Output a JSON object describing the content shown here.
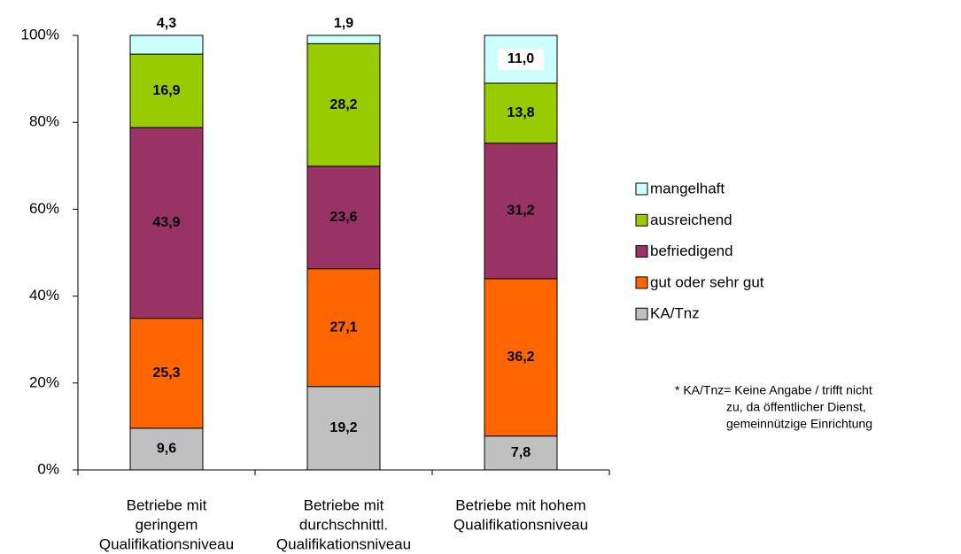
{
  "chart_data": {
    "type": "stacked_bar",
    "categories": [
      [
        "Betriebe mit",
        "geringem",
        "Qualifikationsniveau"
      ],
      [
        "Betriebe mit",
        "durchschnittl.",
        "Qualifikationsniveau"
      ],
      [
        "Betriebe mit hohem",
        "Qualifikationsniveau"
      ]
    ],
    "series": [
      {
        "name": "KA/Tnz",
        "color": "#C0C0C0",
        "label_color": "#000000",
        "values": [
          9.6,
          19.2,
          7.8
        ],
        "value_labels": [
          "9,6",
          "19,2",
          "7,8"
        ]
      },
      {
        "name": "gut oder sehr gut",
        "color": "#FF6600",
        "label_color": "#000000",
        "values": [
          25.3,
          27.1,
          36.2
        ],
        "value_labels": [
          "25,3",
          "27,1",
          "36,2"
        ]
      },
      {
        "name": "befriedigend",
        "color": "#993366",
        "label_color": "#FFFFFF",
        "values": [
          43.9,
          23.6,
          31.2
        ],
        "value_labels": [
          "43,9",
          "23,6",
          "31,2"
        ]
      },
      {
        "name": "ausreichend",
        "color": "#99CC00",
        "label_color": "#000000",
        "values": [
          16.9,
          28.2,
          13.8
        ],
        "value_labels": [
          "16,9",
          "28,2",
          "13,8"
        ]
      },
      {
        "name": "mangelhaft",
        "color": "#CCFFFF",
        "label_color": "#000000",
        "values": [
          4.3,
          1.9,
          11.0
        ],
        "value_labels": [
          "4,3",
          "1,9",
          "11,0"
        ]
      }
    ],
    "ylim": [
      0,
      100
    ],
    "yticks": [
      {
        "value": 0,
        "label": "0%"
      },
      {
        "value": 20,
        "label": "20%"
      },
      {
        "value": 40,
        "label": "40%"
      },
      {
        "value": 60,
        "label": "60%"
      },
      {
        "value": 80,
        "label": "80%"
      },
      {
        "value": 100,
        "label": "100%"
      }
    ],
    "legend": "right",
    "note": [
      "* KA/Tnz= Keine Angabe / trifft nicht",
      "zu, da öffentlicher Dienst,",
      "gemeinnützige Einrichtung"
    ]
  }
}
